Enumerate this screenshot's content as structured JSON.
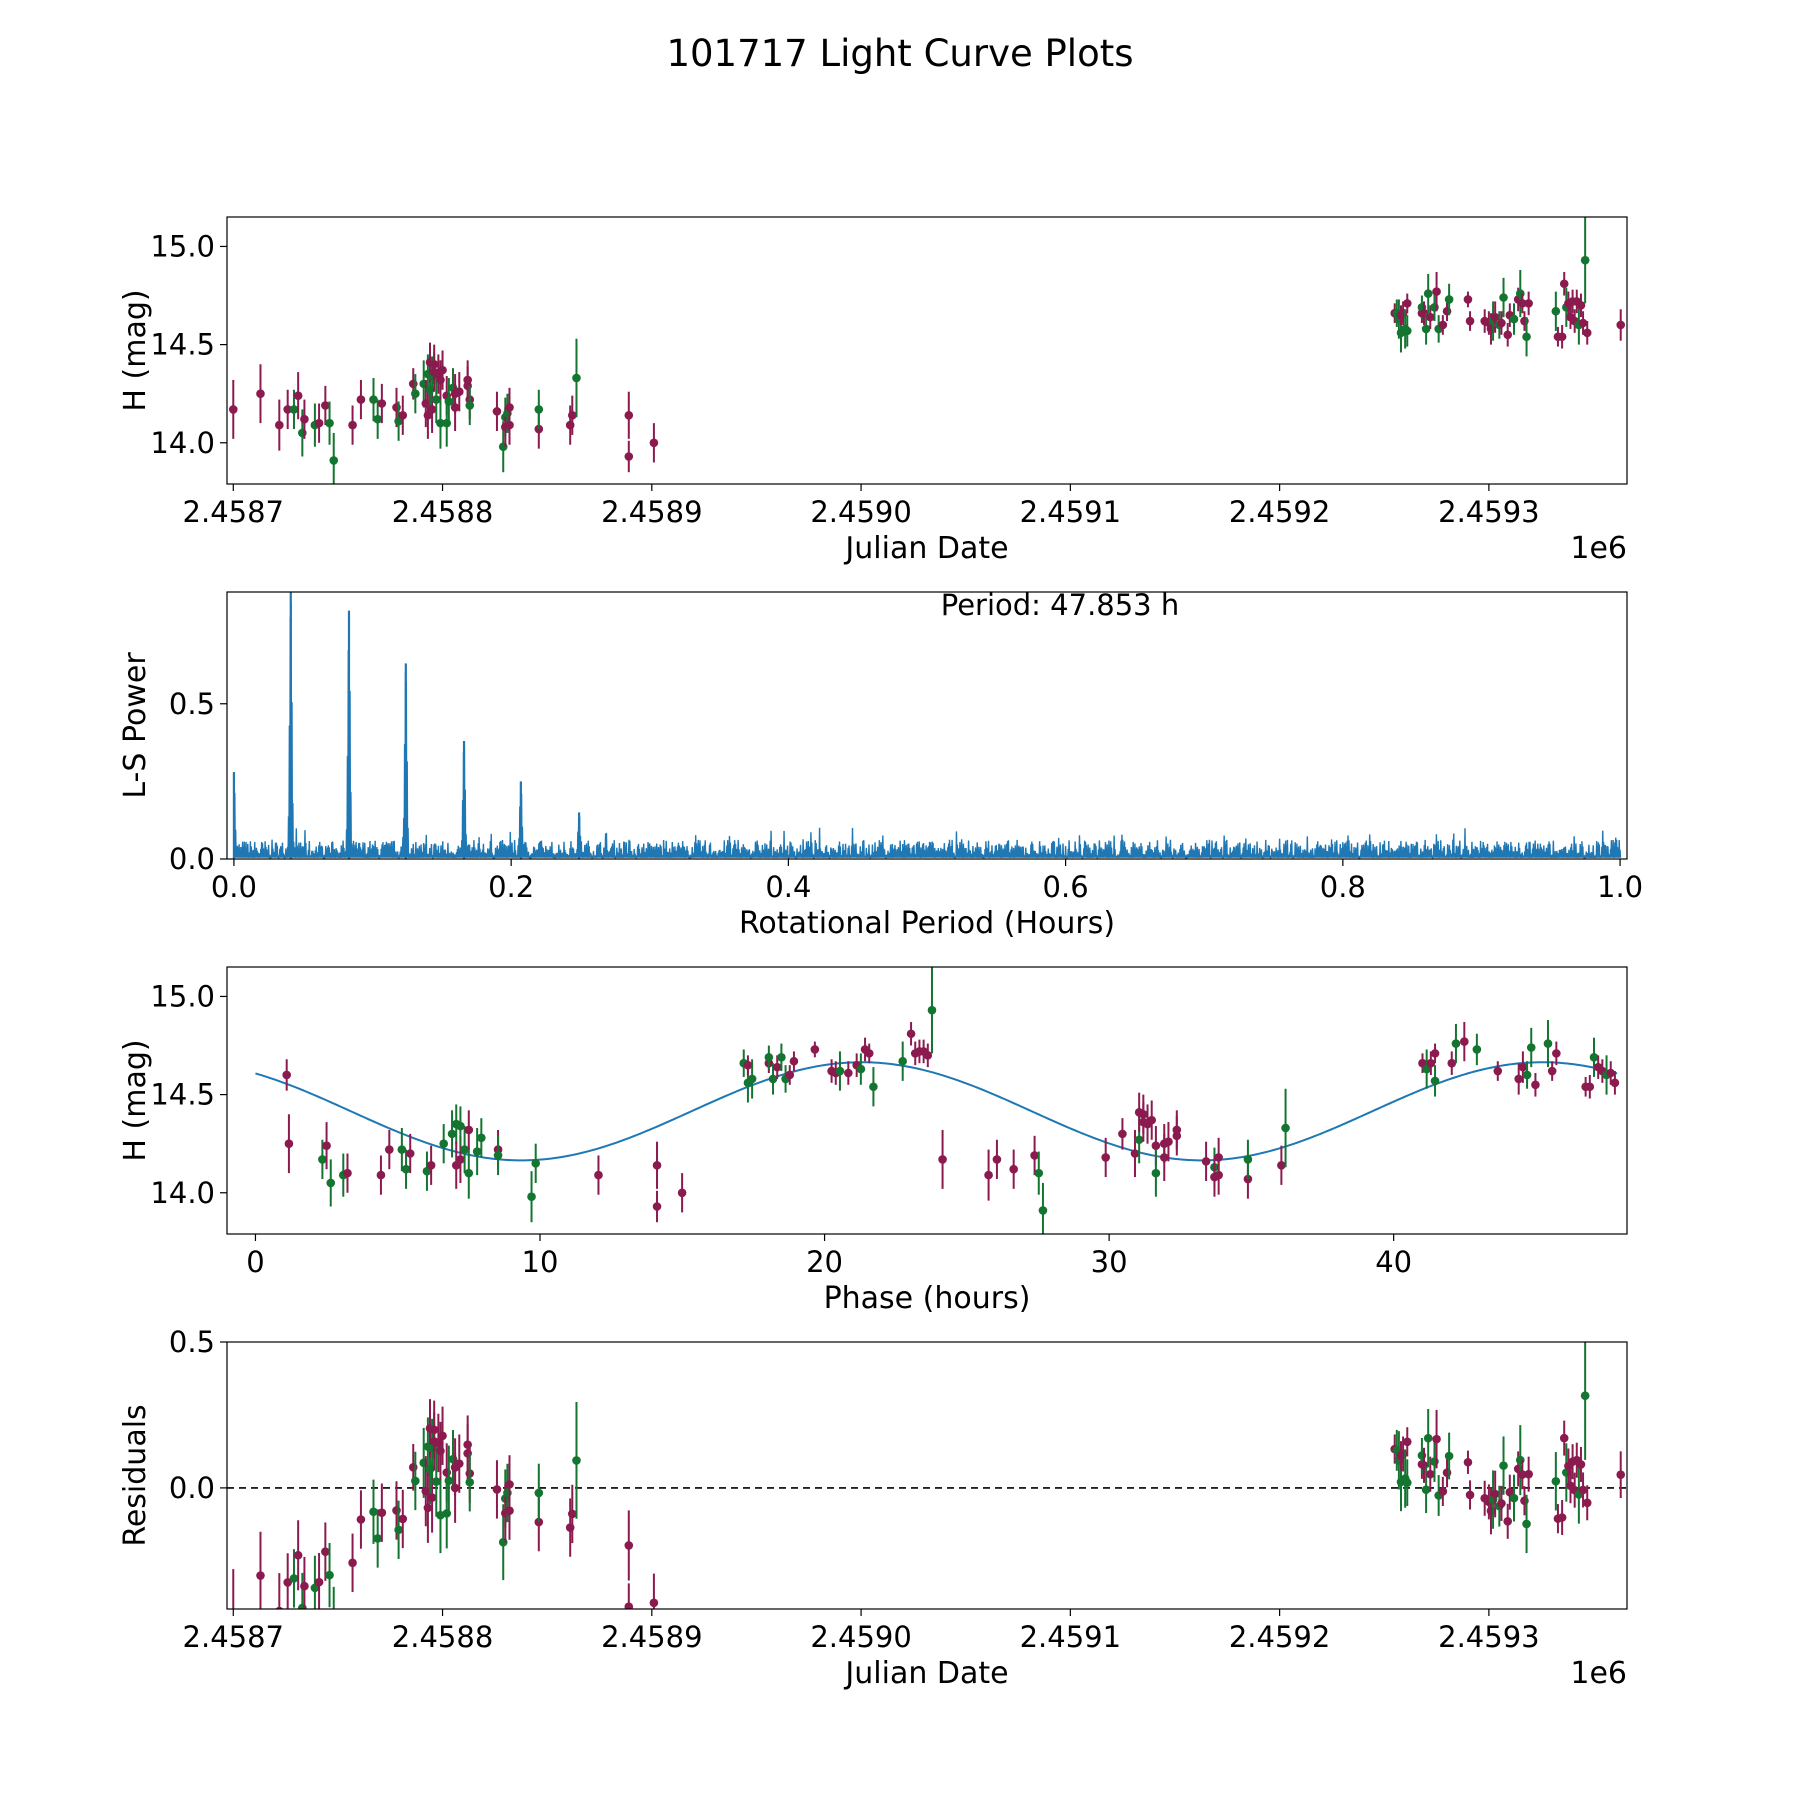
{
  "title": "101717 Light Curve Plots",
  "colors": {
    "band_r": "#8B1A4F",
    "band_g": "#137530",
    "spectrum": "#1f77b4",
    "fit": "#1f77b4",
    "zero_line": "#000000"
  },
  "chart_data": [
    {
      "id": "lc",
      "type": "scatter",
      "xlabel": "Julian Date",
      "ylabel": "H (mag)",
      "offset_label": "1e6",
      "xlim": [
        2.458697,
        2.459366
      ],
      "ylim": [
        13.79,
        15.15
      ],
      "xticks": [
        2.4587,
        2.4588,
        2.4589,
        2.459,
        2.4591,
        2.4592,
        2.4593
      ],
      "xtick_labels": [
        "2.4587",
        "2.4588",
        "2.4589",
        "2.4590",
        "2.4591",
        "2.4592",
        "2.4593"
      ],
      "yticks": [
        14.0,
        14.5,
        15.0
      ],
      "ytick_labels": [
        "14.0",
        "14.5",
        "15.0"
      ]
    },
    {
      "id": "ls",
      "type": "line",
      "xlabel": "Rotational Period (Hours)",
      "ylabel": "L-S Power",
      "annotation": "Period: 47.853 h",
      "xlim": [
        -0.005,
        1.005
      ],
      "ylim": [
        0.0,
        0.86
      ],
      "xticks": [
        0.0,
        0.2,
        0.4,
        0.6,
        0.8,
        1.0
      ],
      "xtick_labels": [
        "0.0",
        "0.2",
        "0.4",
        "0.6",
        "0.8",
        "1.0"
      ],
      "yticks": [
        0.0,
        0.5
      ],
      "ytick_labels": [
        "0.0",
        "0.5"
      ],
      "peaks": [
        {
          "x": 0.0,
          "y": 0.28
        },
        {
          "x": 0.041,
          "y": 0.86
        },
        {
          "x": 0.083,
          "y": 0.8
        },
        {
          "x": 0.124,
          "y": 0.63
        },
        {
          "x": 0.166,
          "y": 0.38
        },
        {
          "x": 0.207,
          "y": 0.25
        },
        {
          "x": 0.249,
          "y": 0.15
        }
      ],
      "noise_floor": 0.05
    },
    {
      "id": "phase",
      "type": "scatter",
      "xlabel": "Phase (hours)",
      "ylabel": "H (mag)",
      "xlim": [
        -1.0,
        48.2
      ],
      "ylim": [
        13.79,
        15.15
      ],
      "xticks": [
        0,
        10,
        20,
        30,
        40
      ],
      "xtick_labels": [
        "0",
        "10",
        "20",
        "30",
        "40"
      ],
      "yticks": [
        14.0,
        14.5,
        15.0
      ],
      "ytick_labels": [
        "14.0",
        "14.5",
        "15.0"
      ],
      "fit": {
        "mean": 14.415,
        "amplitude": 0.25,
        "period": 23.9265,
        "peak_phase": 21.3
      }
    },
    {
      "id": "resid",
      "type": "scatter",
      "xlabel": "Julian Date",
      "ylabel": "Residuals",
      "offset_label": "1e6",
      "xlim": [
        2.458697,
        2.459366
      ],
      "ylim": [
        -0.415,
        0.5
      ],
      "xticks": [
        2.4587,
        2.4588,
        2.4589,
        2.459,
        2.4591,
        2.4592,
        2.4593
      ],
      "xtick_labels": [
        "2.4587",
        "2.4588",
        "2.4589",
        "2.4590",
        "2.4591",
        "2.4592",
        "2.4593"
      ],
      "yticks": [
        0.0,
        0.5
      ],
      "ytick_labels": [
        "0.0",
        "0.5"
      ]
    }
  ],
  "observations": [
    {
      "jd": 2.4587,
      "h": 14.17,
      "e": 0.15,
      "b": "r"
    },
    {
      "jd": 2.458713,
      "h": 14.25,
      "e": 0.15,
      "b": "r"
    },
    {
      "jd": 2.458722,
      "h": 14.09,
      "e": 0.13,
      "b": "r"
    },
    {
      "jd": 2.458726,
      "h": 14.17,
      "e": 0.1,
      "b": "r"
    },
    {
      "jd": 2.458729,
      "h": 14.17,
      "e": 0.1,
      "b": "g"
    },
    {
      "jd": 2.458731,
      "h": 14.24,
      "e": 0.12,
      "b": "r"
    },
    {
      "jd": 2.458733,
      "h": 14.05,
      "e": 0.12,
      "b": "g"
    },
    {
      "jd": 2.458734,
      "h": 14.12,
      "e": 0.1,
      "b": "r"
    },
    {
      "jd": 2.458739,
      "h": 14.09,
      "e": 0.11,
      "b": "g"
    },
    {
      "jd": 2.458741,
      "h": 14.1,
      "e": 0.1,
      "b": "r"
    },
    {
      "jd": 2.458744,
      "h": 14.19,
      "e": 0.1,
      "b": "r"
    },
    {
      "jd": 2.458746,
      "h": 14.1,
      "e": 0.11,
      "b": "g"
    },
    {
      "jd": 2.458748,
      "h": 13.91,
      "e": 0.14,
      "b": "g"
    },
    {
      "jd": 2.458757,
      "h": 14.09,
      "e": 0.1,
      "b": "r"
    },
    {
      "jd": 2.458761,
      "h": 14.22,
      "e": 0.1,
      "b": "r"
    },
    {
      "jd": 2.458767,
      "h": 14.22,
      "e": 0.11,
      "b": "g"
    },
    {
      "jd": 2.458769,
      "h": 14.12,
      "e": 0.1,
      "b": "g"
    },
    {
      "jd": 2.458771,
      "h": 14.2,
      "e": 0.1,
      "b": "r"
    },
    {
      "jd": 2.458778,
      "h": 14.18,
      "e": 0.1,
      "b": "r"
    },
    {
      "jd": 2.458779,
      "h": 14.11,
      "e": 0.1,
      "b": "g"
    },
    {
      "jd": 2.458781,
      "h": 14.14,
      "e": 0.1,
      "b": "r"
    },
    {
      "jd": 2.458786,
      "h": 14.3,
      "e": 0.08,
      "b": "r"
    },
    {
      "jd": 2.458787,
      "h": 14.25,
      "e": 0.1,
      "b": "g"
    },
    {
      "jd": 2.458791,
      "h": 14.3,
      "e": 0.12,
      "b": "g"
    },
    {
      "jd": 2.458792,
      "h": 14.2,
      "e": 0.12,
      "b": "r"
    },
    {
      "jd": 2.458793,
      "h": 14.35,
      "e": 0.1,
      "b": "g"
    },
    {
      "jd": 2.458793,
      "h": 14.14,
      "e": 0.12,
      "b": "r"
    },
    {
      "jd": 2.458794,
      "h": 14.27,
      "e": 0.12,
      "b": "g"
    },
    {
      "jd": 2.458794,
      "h": 14.41,
      "e": 0.1,
      "b": "r"
    },
    {
      "jd": 2.458795,
      "h": 14.17,
      "e": 0.12,
      "b": "r"
    },
    {
      "jd": 2.458795,
      "h": 14.34,
      "e": 0.1,
      "b": "g"
    },
    {
      "jd": 2.458796,
      "h": 14.4,
      "e": 0.1,
      "b": "r"
    },
    {
      "jd": 2.458796,
      "h": 14.36,
      "e": 0.1,
      "b": "r"
    },
    {
      "jd": 2.458797,
      "h": 14.22,
      "e": 0.12,
      "b": "g"
    },
    {
      "jd": 2.458798,
      "h": 14.35,
      "e": 0.1,
      "b": "r"
    },
    {
      "jd": 2.458799,
      "h": 14.1,
      "e": 0.13,
      "b": "g"
    },
    {
      "jd": 2.458799,
      "h": 14.32,
      "e": 0.1,
      "b": "r"
    },
    {
      "jd": 2.4588,
      "h": 14.37,
      "e": 0.1,
      "b": "r"
    },
    {
      "jd": 2.458802,
      "h": 14.24,
      "e": 0.1,
      "b": "r"
    },
    {
      "jd": 2.458802,
      "h": 14.1,
      "e": 0.12,
      "b": "g"
    },
    {
      "jd": 2.458803,
      "h": 14.21,
      "e": 0.12,
      "b": "g"
    },
    {
      "jd": 2.458805,
      "h": 14.28,
      "e": 0.1,
      "b": "g"
    },
    {
      "jd": 2.458806,
      "h": 14.18,
      "e": 0.12,
      "b": "r"
    },
    {
      "jd": 2.458806,
      "h": 14.25,
      "e": 0.1,
      "b": "r"
    },
    {
      "jd": 2.458808,
      "h": 14.26,
      "e": 0.1,
      "b": "r"
    },
    {
      "jd": 2.458812,
      "h": 14.29,
      "e": 0.1,
      "b": "r"
    },
    {
      "jd": 2.458812,
      "h": 14.32,
      "e": 0.1,
      "b": "r"
    },
    {
      "jd": 2.458813,
      "h": 14.22,
      "e": 0.1,
      "b": "r"
    },
    {
      "jd": 2.458813,
      "h": 14.19,
      "e": 0.1,
      "b": "g"
    },
    {
      "jd": 2.458826,
      "h": 14.16,
      "e": 0.1,
      "b": "r"
    },
    {
      "jd": 2.458829,
      "h": 13.98,
      "e": 0.13,
      "b": "g"
    },
    {
      "jd": 2.45883,
      "h": 14.13,
      "e": 0.1,
      "b": "g"
    },
    {
      "jd": 2.45883,
      "h": 14.08,
      "e": 0.1,
      "b": "r"
    },
    {
      "jd": 2.458831,
      "h": 14.15,
      "e": 0.1,
      "b": "g"
    },
    {
      "jd": 2.458832,
      "h": 14.18,
      "e": 0.1,
      "b": "r"
    },
    {
      "jd": 2.458832,
      "h": 14.09,
      "e": 0.1,
      "b": "r"
    },
    {
      "jd": 2.458846,
      "h": 14.07,
      "e": 0.1,
      "b": "r"
    },
    {
      "jd": 2.458846,
      "h": 14.17,
      "e": 0.1,
      "b": "g"
    },
    {
      "jd": 2.458861,
      "h": 14.09,
      "e": 0.1,
      "b": "r"
    },
    {
      "jd": 2.458862,
      "h": 14.14,
      "e": 0.1,
      "b": "r"
    },
    {
      "jd": 2.458864,
      "h": 14.33,
      "e": 0.2,
      "b": "g"
    },
    {
      "jd": 2.458889,
      "h": 14.14,
      "e": 0.12,
      "b": "r"
    },
    {
      "jd": 2.458889,
      "h": 13.93,
      "e": 0.08,
      "b": "r"
    },
    {
      "jd": 2.458901,
      "h": 14.0,
      "e": 0.1,
      "b": "r"
    },
    {
      "jd": 2.459255,
      "h": 14.66,
      "e": 0.05,
      "b": "r"
    },
    {
      "jd": 2.459256,
      "h": 14.66,
      "e": 0.07,
      "b": "g"
    },
    {
      "jd": 2.459257,
      "h": 14.63,
      "e": 0.1,
      "b": "g"
    },
    {
      "jd": 2.459258,
      "h": 14.56,
      "e": 0.1,
      "b": "g"
    },
    {
      "jd": 2.459258,
      "h": 14.65,
      "e": 0.05,
      "b": "r"
    },
    {
      "jd": 2.459259,
      "h": 14.66,
      "e": 0.06,
      "b": "r"
    },
    {
      "jd": 2.45926,
      "h": 14.58,
      "e": 0.1,
      "b": "g"
    },
    {
      "jd": 2.459261,
      "h": 14.71,
      "e": 0.05,
      "b": "r"
    },
    {
      "jd": 2.459261,
      "h": 14.57,
      "e": 0.08,
      "b": "g"
    },
    {
      "jd": 2.459268,
      "h": 14.66,
      "e": 0.05,
      "b": "r"
    },
    {
      "jd": 2.459268,
      "h": 14.69,
      "e": 0.06,
      "b": "g"
    },
    {
      "jd": 2.459269,
      "h": 14.66,
      "e": 0.06,
      "b": "r"
    },
    {
      "jd": 2.45927,
      "h": 14.58,
      "e": 0.08,
      "b": "g"
    },
    {
      "jd": 2.459271,
      "h": 14.76,
      "e": 0.1,
      "b": "g"
    },
    {
      "jd": 2.459272,
      "h": 14.64,
      "e": 0.06,
      "b": "r"
    },
    {
      "jd": 2.459274,
      "h": 14.69,
      "e": 0.07,
      "b": "g"
    },
    {
      "jd": 2.459275,
      "h": 14.77,
      "e": 0.1,
      "b": "r"
    },
    {
      "jd": 2.459276,
      "h": 14.58,
      "e": 0.07,
      "b": "g"
    },
    {
      "jd": 2.459278,
      "h": 14.6,
      "e": 0.05,
      "b": "r"
    },
    {
      "jd": 2.45928,
      "h": 14.67,
      "e": 0.05,
      "b": "r"
    },
    {
      "jd": 2.459281,
      "h": 14.73,
      "e": 0.08,
      "b": "g"
    },
    {
      "jd": 2.45929,
      "h": 14.73,
      "e": 0.04,
      "b": "r"
    },
    {
      "jd": 2.459291,
      "h": 14.62,
      "e": 0.05,
      "b": "r"
    },
    {
      "jd": 2.459298,
      "h": 14.62,
      "e": 0.06,
      "b": "r"
    },
    {
      "jd": 2.4593,
      "h": 14.61,
      "e": 0.06,
      "b": "r"
    },
    {
      "jd": 2.459301,
      "h": 14.58,
      "e": 0.08,
      "b": "r"
    },
    {
      "jd": 2.459302,
      "h": 14.62,
      "e": 0.1,
      "b": "g"
    },
    {
      "jd": 2.459303,
      "h": 14.64,
      "e": 0.08,
      "b": "r"
    },
    {
      "jd": 2.459305,
      "h": 14.6,
      "e": 0.07,
      "b": "g"
    },
    {
      "jd": 2.459306,
      "h": 14.61,
      "e": 0.06,
      "b": "r"
    },
    {
      "jd": 2.459307,
      "h": 14.74,
      "e": 0.1,
      "b": "g"
    },
    {
      "jd": 2.459309,
      "h": 14.55,
      "e": 0.06,
      "b": "r"
    },
    {
      "jd": 2.45931,
      "h": 14.65,
      "e": 0.06,
      "b": "r"
    },
    {
      "jd": 2.459312,
      "h": 14.63,
      "e": 0.08,
      "b": "g"
    },
    {
      "jd": 2.459314,
      "h": 14.73,
      "e": 0.06,
      "b": "r"
    },
    {
      "jd": 2.459315,
      "h": 14.76,
      "e": 0.12,
      "b": "g"
    },
    {
      "jd": 2.459316,
      "h": 14.71,
      "e": 0.05,
      "b": "r"
    },
    {
      "jd": 2.459317,
      "h": 14.62,
      "e": 0.05,
      "b": "r"
    },
    {
      "jd": 2.459318,
      "h": 14.54,
      "e": 0.1,
      "b": "g"
    },
    {
      "jd": 2.459319,
      "h": 14.71,
      "e": 0.06,
      "b": "r"
    },
    {
      "jd": 2.459332,
      "h": 14.67,
      "e": 0.1,
      "b": "g"
    },
    {
      "jd": 2.459333,
      "h": 14.54,
      "e": 0.05,
      "b": "r"
    },
    {
      "jd": 2.459335,
      "h": 14.54,
      "e": 0.06,
      "b": "r"
    },
    {
      "jd": 2.459336,
      "h": 14.81,
      "e": 0.06,
      "b": "r"
    },
    {
      "jd": 2.459337,
      "h": 14.69,
      "e": 0.1,
      "b": "g"
    },
    {
      "jd": 2.459338,
      "h": 14.71,
      "e": 0.06,
      "b": "r"
    },
    {
      "jd": 2.459339,
      "h": 14.64,
      "e": 0.06,
      "b": "r"
    },
    {
      "jd": 2.45934,
      "h": 14.72,
      "e": 0.06,
      "b": "r"
    },
    {
      "jd": 2.459341,
      "h": 14.62,
      "e": 0.06,
      "b": "r"
    },
    {
      "jd": 2.459342,
      "h": 14.72,
      "e": 0.06,
      "b": "r"
    },
    {
      "jd": 2.459343,
      "h": 14.6,
      "e": 0.1,
      "b": "g"
    },
    {
      "jd": 2.459344,
      "h": 14.7,
      "e": 0.06,
      "b": "r"
    },
    {
      "jd": 2.459345,
      "h": 14.61,
      "e": 0.06,
      "b": "r"
    },
    {
      "jd": 2.459346,
      "h": 14.93,
      "e": 0.22,
      "b": "g"
    },
    {
      "jd": 2.459347,
      "h": 14.56,
      "e": 0.06,
      "b": "r"
    },
    {
      "jd": 2.459363,
      "h": 14.6,
      "e": 0.08,
      "b": "r"
    }
  ]
}
